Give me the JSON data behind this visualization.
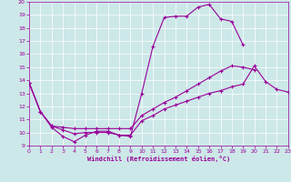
{
  "xlabel": "Windchill (Refroidissement éolien,°C)",
  "bg_color": "#cde8e8",
  "line_color": "#990099",
  "grid_color": "#ffffff",
  "xmin": 0,
  "xmax": 23,
  "ymin": 9,
  "ymax": 20,
  "line1_x": [
    0,
    1,
    2,
    3,
    4,
    5,
    6,
    7,
    8,
    9,
    10,
    11,
    12,
    13,
    14,
    15,
    16,
    17,
    18,
    19
  ],
  "line1_y": [
    13.8,
    11.6,
    10.4,
    9.7,
    9.3,
    9.8,
    10.1,
    10.1,
    9.8,
    9.7,
    13.0,
    16.6,
    18.8,
    18.9,
    18.9,
    19.6,
    19.8,
    18.7,
    18.5,
    16.7
  ],
  "line2_x": [
    0,
    1,
    2,
    3,
    4,
    5,
    6,
    7,
    8,
    9,
    10,
    11,
    12,
    13,
    14,
    15,
    16,
    17,
    18,
    19,
    20
  ],
  "line2_y": [
    13.8,
    11.6,
    10.5,
    10.4,
    10.3,
    10.3,
    10.3,
    10.3,
    10.3,
    10.3,
    11.3,
    11.8,
    12.3,
    12.7,
    13.2,
    13.7,
    14.2,
    14.7,
    15.1,
    15.0,
    14.8
  ],
  "line3_x": [
    0,
    1,
    2,
    3,
    4,
    5,
    6,
    7,
    8,
    9,
    10,
    11,
    12,
    13,
    14,
    15,
    16,
    17,
    18,
    19,
    20,
    21,
    22,
    23
  ],
  "line3_y": [
    13.8,
    11.6,
    10.5,
    10.2,
    9.9,
    10.0,
    10.0,
    10.0,
    9.8,
    9.8,
    10.9,
    11.3,
    11.8,
    12.1,
    12.4,
    12.7,
    13.0,
    13.2,
    13.5,
    13.7,
    15.1,
    13.9,
    13.3,
    13.1
  ]
}
